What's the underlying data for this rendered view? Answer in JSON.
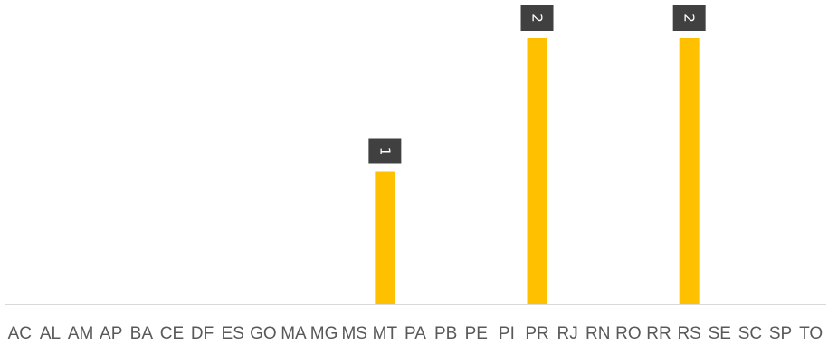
{
  "chart_data": {
    "type": "bar",
    "categories": [
      "AC",
      "AL",
      "AM",
      "AP",
      "BA",
      "CE",
      "DF",
      "ES",
      "GO",
      "MA",
      "MG",
      "MS",
      "MT",
      "PA",
      "PB",
      "PE",
      "PI",
      "PR",
      "RJ",
      "RN",
      "RO",
      "RR",
      "RS",
      "SE",
      "SC",
      "SP",
      "TO"
    ],
    "values": [
      0,
      0,
      0,
      0,
      0,
      0,
      0,
      0,
      0,
      0,
      0,
      0,
      1,
      0,
      0,
      0,
      0,
      2,
      0,
      0,
      0,
      0,
      2,
      0,
      0,
      0,
      0
    ],
    "ylim": [
      0,
      2
    ],
    "grid": false,
    "legend": "none",
    "colors": {
      "bar": "#FFC000",
      "label_box": "#404040",
      "label_text": "#FFFFFF",
      "axis": "#D9D9D9",
      "tick_text": "#595959"
    }
  }
}
